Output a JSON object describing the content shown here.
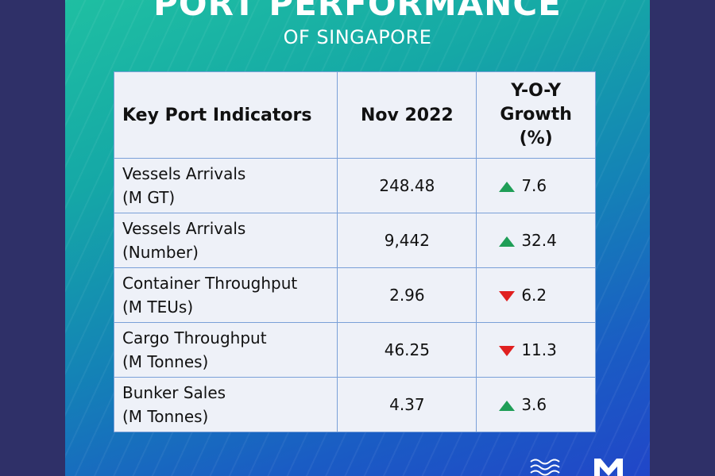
{
  "page": {
    "title": "PORT PERFORMANCE",
    "subtitle": "OF SINGAPORE"
  },
  "colors": {
    "up": "#1f9e57",
    "down": "#e02020",
    "table_bg": "#eef1f8",
    "border": "#7aa0d8"
  },
  "chart_data": {
    "type": "table",
    "columns": [
      "Key Port Indicators",
      "Nov 2022",
      "Y-O-Y Growth (%)"
    ],
    "header_lines": {
      "col3": [
        "Y-O-Y",
        "Growth",
        "(%)"
      ]
    },
    "rows": [
      {
        "indicator": "Vessels Arrivals",
        "unit": "(M GT)",
        "value": "248.48",
        "direction": "up",
        "growth": "7.6"
      },
      {
        "indicator": "Vessels Arrivals",
        "unit": "(Number)",
        "value": "9,442",
        "direction": "up",
        "growth": "32.4"
      },
      {
        "indicator": "Container Throughput",
        "unit": "(M TEUs)",
        "value": "2.96",
        "direction": "down",
        "growth": "6.2"
      },
      {
        "indicator": "Cargo Throughput",
        "unit": "(M Tonnes)",
        "value": "46.25",
        "direction": "down",
        "growth": "11.3"
      },
      {
        "indicator": "Bunker Sales",
        "unit": "(M Tonnes)",
        "value": "4.37",
        "direction": "up",
        "growth": "3.6"
      }
    ]
  }
}
